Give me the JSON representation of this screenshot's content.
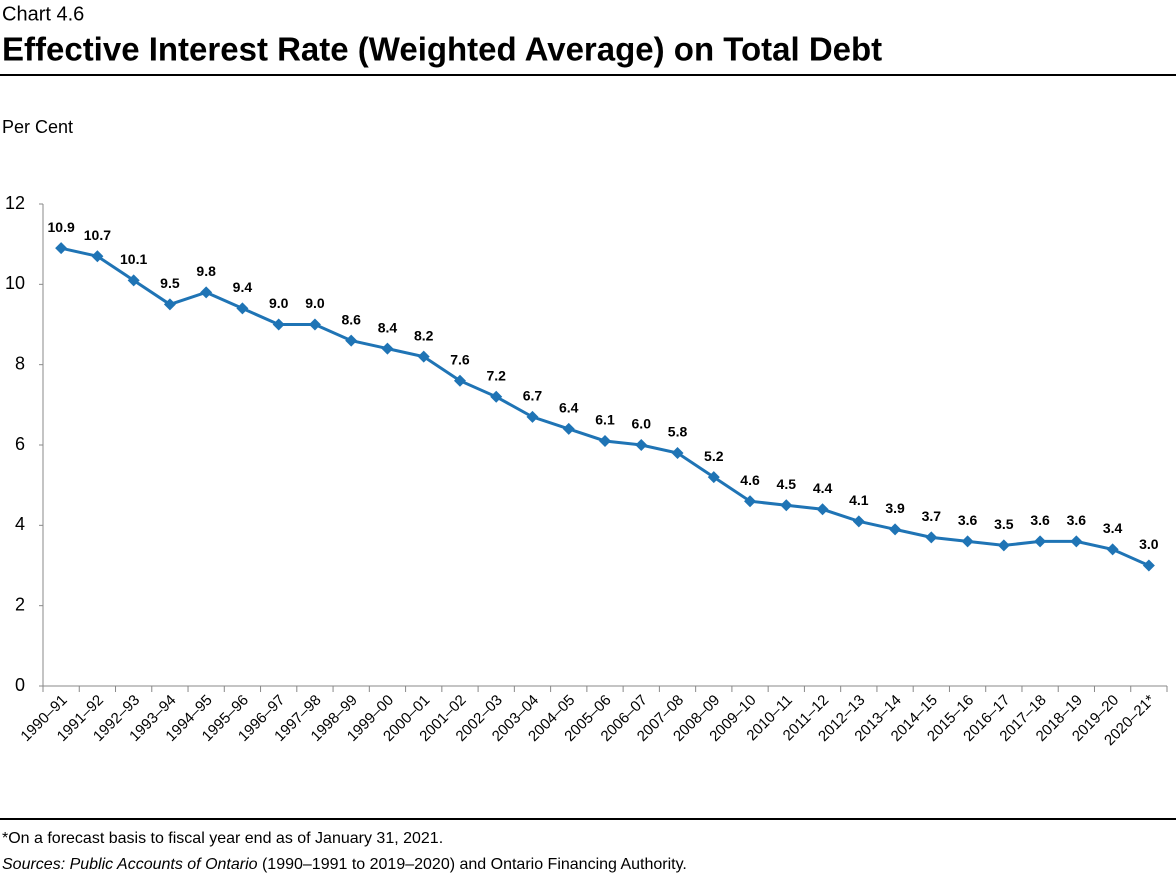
{
  "header": {
    "kicker": "Chart 4.6",
    "title": "Effective Interest Rate (Weighted Average) on Total Debt"
  },
  "chart_data": {
    "type": "line",
    "y_label": "Per Cent",
    "categories": [
      "1990–91",
      "1991–92",
      "1992–93",
      "1993–94",
      "1994–95",
      "1995–96",
      "1996–97",
      "1997–98",
      "1998–99",
      "1999–00",
      "2000–01",
      "2001–02",
      "2002–03",
      "2003–04",
      "2004–05",
      "2005–06",
      "2006–07",
      "2007–08",
      "2008–09",
      "2009–10",
      "2010–11",
      "2011–12",
      "2012–13",
      "2013–14",
      "2014–15",
      "2015–16",
      "2016–17",
      "2017–18",
      "2018–19",
      "2019–20",
      "2020–21*"
    ],
    "values": [
      10.9,
      10.7,
      10.1,
      9.5,
      9.8,
      9.4,
      9.0,
      9.0,
      8.6,
      8.4,
      8.2,
      7.6,
      7.2,
      6.7,
      6.4,
      6.1,
      6.0,
      5.8,
      5.2,
      4.6,
      4.5,
      4.4,
      4.1,
      3.9,
      3.7,
      3.6,
      3.5,
      3.6,
      3.6,
      3.4,
      3.0
    ],
    "value_labels": [
      "10.9",
      "10.7",
      "10.1",
      "9.5",
      "9.8",
      "9.4",
      "9.0",
      "9.0",
      "8.6",
      "8.4",
      "8.2",
      "7.6",
      "7.2",
      "6.7",
      "6.4",
      "6.1",
      "6.0",
      "5.8",
      "5.2",
      "4.6",
      "4.5",
      "4.4",
      "4.1",
      "3.9",
      "3.7",
      "3.6",
      "3.5",
      "3.6",
      "3.6",
      "3.4",
      "3.0"
    ],
    "color": "#1f74b5",
    "ylim": [
      0,
      12
    ],
    "yticks": [
      0,
      2,
      4,
      6,
      8,
      10,
      12
    ],
    "grid": false
  },
  "footer": {
    "note": "*On a forecast basis to fiscal year end as of January 31, 2021.",
    "sources": [
      "Sources: Public Accounts of Ontario",
      " (1990–1991 to 2019–2020) and Ontario Financing Authority."
    ]
  }
}
